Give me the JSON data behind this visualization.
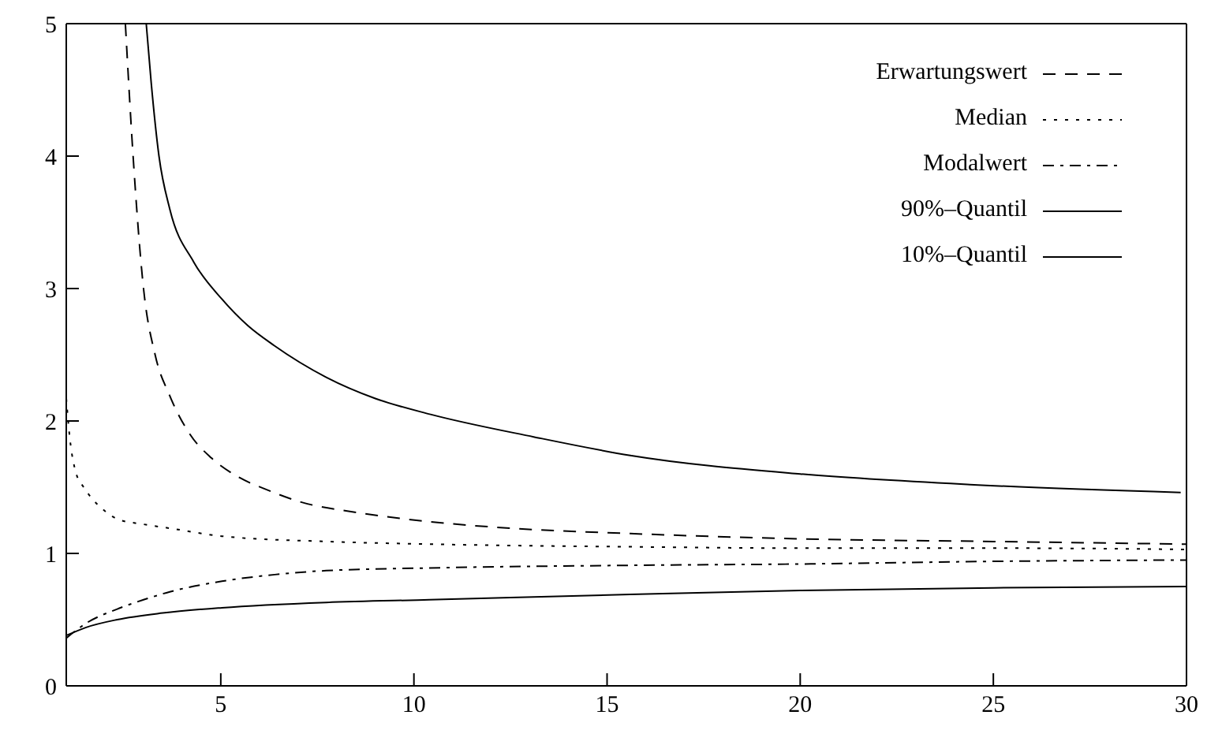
{
  "chart_data": {
    "type": "line",
    "xlim": [
      1,
      30
    ],
    "xticks": [
      5,
      10,
      15,
      20,
      25,
      30
    ],
    "ylim": [
      0,
      5
    ],
    "yticks": [
      0,
      1,
      2,
      3,
      4,
      5
    ],
    "legend": "top right",
    "marker": "none",
    "series": [
      {
        "name": "Erwartungswert",
        "color": "#000000",
        "line_style": "dashed",
        "x": [
          2.53,
          2.73,
          3.0,
          3.3,
          3.68,
          4.2,
          4.76,
          5.5,
          6.2,
          7.05,
          8.5,
          10.4,
          12.5,
          15.6,
          20,
          25,
          30
        ],
        "values": [
          5,
          4.0,
          3.0,
          2.5,
          2.19,
          1.9,
          1.72,
          1.57,
          1.48,
          1.39,
          1.31,
          1.24,
          1.19,
          1.15,
          1.11,
          1.09,
          1.07
        ]
      },
      {
        "name": "Median",
        "color": "#000000",
        "line_style": "dotted",
        "x": [
          1,
          1.1,
          1.24,
          1.45,
          1.65,
          2.0,
          2.32,
          3.0,
          3.68,
          5.03,
          7.73,
          10.4,
          15.6,
          20,
          25,
          30
        ],
        "values": [
          2.17,
          1.85,
          1.62,
          1.5,
          1.42,
          1.32,
          1.26,
          1.22,
          1.19,
          1.13,
          1.09,
          1.07,
          1.05,
          1.04,
          1.04,
          1.03
        ]
      },
      {
        "name": "Modalwert",
        "color": "#000000",
        "line_style": "dashdot",
        "x": [
          1,
          1.5,
          2.32,
          3.0,
          3.68,
          5.03,
          6.4,
          7.73,
          10.4,
          15.6,
          20,
          25,
          30
        ],
        "values": [
          0.36,
          0.47,
          0.58,
          0.65,
          0.71,
          0.79,
          0.84,
          0.87,
          0.89,
          0.91,
          0.92,
          0.94,
          0.95
        ]
      },
      {
        "name": "90%–Quantil",
        "color": "#000000",
        "line_style": "solid",
        "x": [
          3.07,
          3.2,
          3.4,
          3.68,
          4.3,
          5.03,
          5.7,
          6.38,
          7.73,
          9.0,
          10.43,
          13.1,
          15.6,
          20,
          24.4,
          29.85
        ],
        "values": [
          5,
          4.55,
          4.0,
          3.6,
          3.2,
          2.92,
          2.72,
          2.57,
          2.33,
          2.17,
          2.05,
          1.88,
          1.74,
          1.6,
          1.52,
          1.46
        ]
      },
      {
        "name": "10%–Quantil",
        "color": "#000000",
        "line_style": "solid",
        "x": [
          1,
          1.5,
          2.32,
          3.5,
          5.03,
          7.73,
          10.4,
          15.6,
          20,
          25,
          30
        ],
        "values": [
          0.38,
          0.44,
          0.5,
          0.55,
          0.59,
          0.63,
          0.65,
          0.69,
          0.72,
          0.74,
          0.75
        ]
      }
    ]
  }
}
